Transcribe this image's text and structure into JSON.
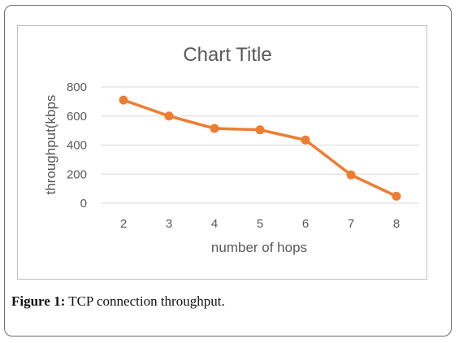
{
  "chart_data": {
    "type": "line",
    "title": "Chart Title",
    "xlabel": "number of hops",
    "ylabel": "throughput(kbps",
    "x": [
      2,
      3,
      4,
      5,
      6,
      7,
      8
    ],
    "series": [
      {
        "values": [
          710,
          600,
          515,
          505,
          435,
          195,
          48
        ]
      }
    ],
    "ylim": [
      0,
      800
    ],
    "yticks": [
      0,
      200,
      400,
      600,
      800
    ],
    "grid": true,
    "legend": "none",
    "colors": {
      "line": "#ED7D31",
      "grid": "#d9d9d9",
      "text": "#595959"
    }
  },
  "caption": {
    "label": "Figure 1:",
    "text": " TCP connection throughput."
  }
}
